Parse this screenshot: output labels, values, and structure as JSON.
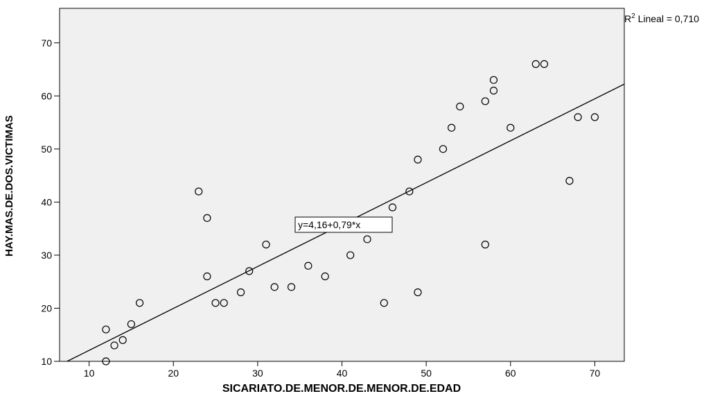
{
  "chart_data": {
    "type": "scatter",
    "xlabel": "SICARIATO.DE.MENOR.DE.MENOR.DE.EDAD",
    "ylabel": "HAY.MAS.DE.DOS.VICTIMAS",
    "xlim": [
      6.5,
      73.5
    ],
    "ylim": [
      10,
      76.5
    ],
    "xticks": [
      10,
      20,
      30,
      40,
      50,
      60,
      70
    ],
    "yticks": [
      10,
      20,
      30,
      40,
      50,
      60,
      70
    ],
    "grid": false,
    "plot_background": "#f0f0f0",
    "marker_color": "#000000",
    "points": [
      {
        "x": 12,
        "y": 10
      },
      {
        "x": 12,
        "y": 16
      },
      {
        "x": 13,
        "y": 13
      },
      {
        "x": 14,
        "y": 14
      },
      {
        "x": 15,
        "y": 17
      },
      {
        "x": 16,
        "y": 21
      },
      {
        "x": 23,
        "y": 42
      },
      {
        "x": 24,
        "y": 37
      },
      {
        "x": 24,
        "y": 26
      },
      {
        "x": 25,
        "y": 21
      },
      {
        "x": 26,
        "y": 21
      },
      {
        "x": 28,
        "y": 23
      },
      {
        "x": 29,
        "y": 27
      },
      {
        "x": 31,
        "y": 32
      },
      {
        "x": 32,
        "y": 24
      },
      {
        "x": 34,
        "y": 24
      },
      {
        "x": 36,
        "y": 28
      },
      {
        "x": 38,
        "y": 26
      },
      {
        "x": 41,
        "y": 30
      },
      {
        "x": 43,
        "y": 33
      },
      {
        "x": 45,
        "y": 21
      },
      {
        "x": 46,
        "y": 39
      },
      {
        "x": 48,
        "y": 42
      },
      {
        "x": 49,
        "y": 48
      },
      {
        "x": 49,
        "y": 23
      },
      {
        "x": 52,
        "y": 50
      },
      {
        "x": 53,
        "y": 54
      },
      {
        "x": 54,
        "y": 58
      },
      {
        "x": 57,
        "y": 59
      },
      {
        "x": 57,
        "y": 32
      },
      {
        "x": 58,
        "y": 63
      },
      {
        "x": 58,
        "y": 61
      },
      {
        "x": 60,
        "y": 54
      },
      {
        "x": 63,
        "y": 66
      },
      {
        "x": 64,
        "y": 66
      },
      {
        "x": 67,
        "y": 44
      },
      {
        "x": 68,
        "y": 56
      },
      {
        "x": 70,
        "y": 56
      }
    ],
    "fit_line": {
      "intercept": 4.16,
      "slope": 0.79
    },
    "fit_equation": "y=4,16+0,79*x",
    "r2_label": "R",
    "r2_sup": "2",
    "r2_text": " Lineal = 0,710"
  }
}
